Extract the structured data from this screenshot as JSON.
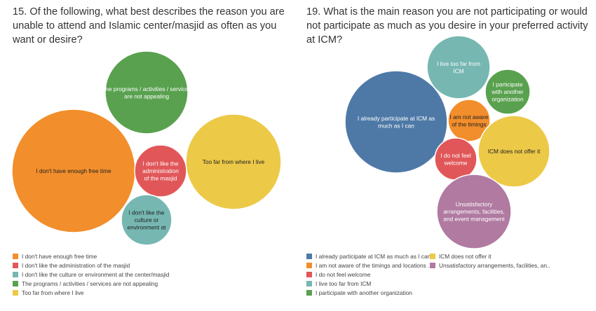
{
  "colors": {
    "orange": "#f28e2b",
    "red": "#e15759",
    "teal": "#76b7b2",
    "green": "#59a14f",
    "yellow": "#edc948",
    "blue": "#4e79a7",
    "purple": "#b07aa1"
  },
  "chart_data": [
    {
      "type": "bubble",
      "title": "15. Of the following, what best describes the reason you are unable to attend and Islamic center/masjid as often as you want or desire?",
      "legend_position": "bottom-left",
      "bubbles": [
        {
          "key": "free_time",
          "label_lines": [
            "I don't have enough free time"
          ],
          "color": "#f28e2b",
          "value": 25
        },
        {
          "key": "programs",
          "label_lines": [
            "The programs / activities / services",
            "are not appealing"
          ],
          "color": "#59a14f",
          "value": 18
        },
        {
          "key": "far",
          "label_lines": [
            "Too far from where I live"
          ],
          "color": "#edc948",
          "value": 20
        },
        {
          "key": "administration",
          "label_lines": [
            "I don't like the",
            "administration",
            "of the masjid"
          ],
          "color": "#e15759",
          "value": 4
        },
        {
          "key": "culture",
          "label_lines": [
            "I don't like the",
            "culture or",
            "environment at"
          ],
          "color": "#76b7b2",
          "value": 4
        }
      ],
      "legend": [
        {
          "label": "I don't have enough free time",
          "color": "#f28e2b"
        },
        {
          "label": "I don't like the administration of the masjid",
          "color": "#e15759"
        },
        {
          "label": "I don't like the culture or environment at the center/masjid",
          "color": "#76b7b2"
        },
        {
          "label": "The programs / activities / services are not appealing",
          "color": "#59a14f"
        },
        {
          "label": "Too far from where I live",
          "color": "#edc948"
        }
      ]
    },
    {
      "type": "bubble",
      "title": "19. What is the main reason you are not participating or would not participate as much as you desire in your preferred activity at ICM?",
      "legend_position": "bottom-left",
      "bubbles": [
        {
          "key": "already",
          "label_lines": [
            "I already participate at ICM as",
            "much as I can"
          ],
          "color": "#4e79a7",
          "value": 20
        },
        {
          "key": "live_far",
          "label_lines": [
            "I live too far from",
            "ICM"
          ],
          "color": "#76b7b2",
          "value": 7
        },
        {
          "key": "another_org",
          "label_lines": [
            "I participate",
            "with another",
            "organization"
          ],
          "color": "#59a14f",
          "value": 4
        },
        {
          "key": "not_aware",
          "label_lines": [
            "I am not aware",
            "of the timings"
          ],
          "color": "#f28e2b",
          "value": 3
        },
        {
          "key": "not_offer",
          "label_lines": [
            "ICM does not offer it"
          ],
          "color": "#edc948",
          "value": 8
        },
        {
          "key": "not_welcome",
          "label_lines": [
            "I do not feel",
            "welcome"
          ],
          "color": "#e15759",
          "value": 2.3
        },
        {
          "key": "unsatisfactory",
          "label_lines": [
            "Unsatisfactory",
            "arrangements, facilities,",
            "and event management"
          ],
          "color": "#b07aa1",
          "value": 9
        }
      ],
      "legend": [
        {
          "label": "I already participate at ICM as much as I can",
          "color": "#4e79a7"
        },
        {
          "label": "I am not aware of the timings and locations ..",
          "color": "#f28e2b"
        },
        {
          "label": "I do not feel welcome",
          "color": "#e15759"
        },
        {
          "label": "I live too far from ICM",
          "color": "#76b7b2"
        },
        {
          "label": "I participate with another organization",
          "color": "#59a14f"
        },
        {
          "label": "ICM does not offer it",
          "color": "#edc948"
        },
        {
          "label": "Unsatisfactory arrangements, facilities, an..",
          "color": "#b07aa1"
        }
      ]
    }
  ]
}
